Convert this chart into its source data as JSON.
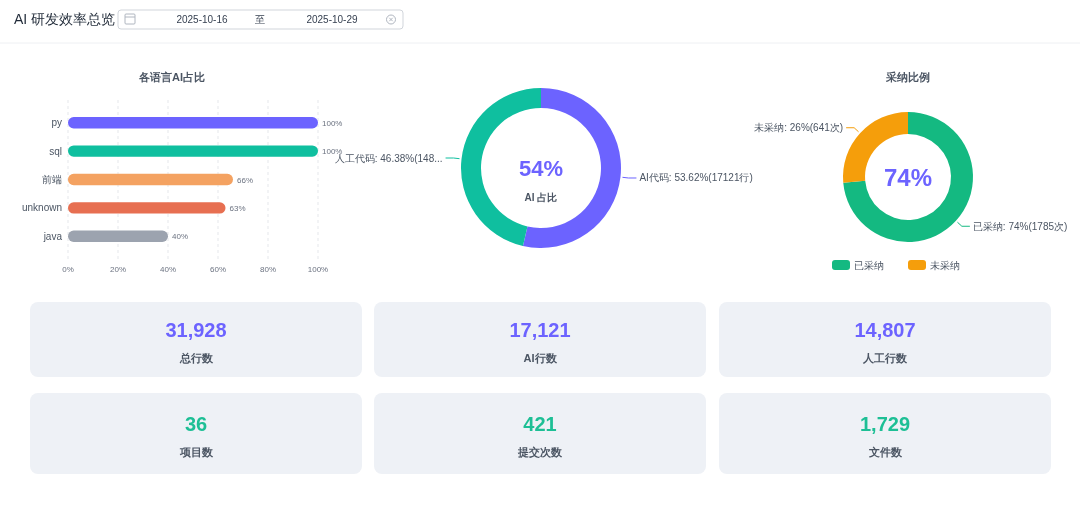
{
  "chart_data": [
    {
      "type": "other",
      "title": "AI 研发效率总览",
      "annotations": [
        "2025-10-16",
        "至",
        "2025-10-29"
      ]
    },
    {
      "type": "bar",
      "title": "各语言AI占比",
      "orientation": "horizontal",
      "categories": [
        "py",
        "sql",
        "前端",
        "unknown",
        "java"
      ],
      "values": [
        100,
        100,
        66,
        63,
        40
      ],
      "colors": [
        "#6c63ff",
        "#0fbf9f",
        "#f4a261",
        "#e76f51",
        "#9ca3af"
      ],
      "value_labels": [
        "100%",
        "100%",
        "66%",
        "63%",
        "40%"
      ],
      "xlim": [
        0,
        100
      ],
      "xticks": [
        {
          "value": 0,
          "label": "0%"
        },
        {
          "value": 20,
          "label": "20%"
        },
        {
          "value": 40,
          "label": "40%"
        },
        {
          "value": 60,
          "label": "60%"
        },
        {
          "value": 80,
          "label": "80%"
        },
        {
          "value": 100,
          "label": "100%"
        }
      ],
      "grid": "x"
    },
    {
      "type": "donut",
      "categories": [
        null,
        null
      ],
      "values": [
        53.62,
        46.38
      ],
      "colors": [
        "#6c63ff",
        "#0fbf9f"
      ],
      "value_labels": [
        "AI代码: 53.62%(17121行)",
        "人工代码: 46.38%(148..."
      ],
      "annotations": [
        "54%",
        "AI 占比"
      ]
    },
    {
      "type": "donut",
      "title": "采纳比例",
      "categories": [
        "已采纳",
        "未采纳"
      ],
      "values": [
        1785,
        641
      ],
      "colors": [
        "#14b981",
        "#f59e0b"
      ],
      "value_labels": [
        "已采纳: 74%(1785次)",
        "未采纳: 26%(641次)"
      ],
      "annotations": [
        "74%"
      ],
      "legend": "bottom"
    },
    {
      "type": "other",
      "categories": [
        "总行数",
        "AI行数",
        "人工行数",
        "项目数",
        "提交次数",
        "文件数"
      ],
      "value_labels": [
        "31,928",
        "17,121",
        "14,807",
        "36",
        "421",
        "1,729"
      ]
    }
  ]
}
